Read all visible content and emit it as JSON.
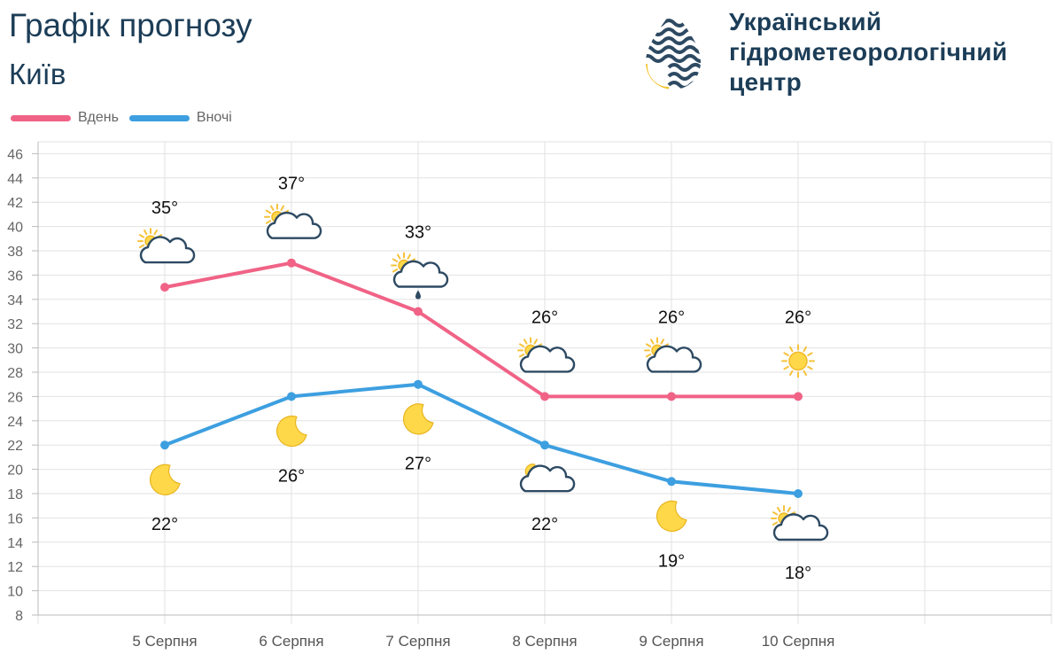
{
  "header": {
    "title": "Графік прогнозу",
    "city": "Київ"
  },
  "logo": {
    "line1": "Український",
    "line2": "гідрометеорологічний",
    "line3": "центр"
  },
  "colors": {
    "day": "#f06386",
    "night": "#3d9fe0",
    "text": "#1c3d57",
    "grid": "#e2e2e2"
  },
  "chart_data": {
    "type": "line",
    "categories": [
      "5 Серпня",
      "6 Серпня",
      "7 Серпня",
      "8 Серпня",
      "9 Серпня",
      "10 Серпня"
    ],
    "series": [
      {
        "name": "Вдень",
        "values": [
          35,
          37,
          33,
          26,
          26,
          26
        ],
        "labels": [
          "35°",
          "37°",
          "33°",
          "26°",
          "26°",
          "26°"
        ],
        "icons": [
          "sun-cloud-icon",
          "sun-cloud-icon",
          "sun-cloud-rain-icon",
          "sun-cloud-icon",
          "sun-cloud-icon",
          "sun-icon"
        ]
      },
      {
        "name": "Вночі",
        "values": [
          22,
          26,
          27,
          22,
          19,
          18
        ],
        "labels": [
          "22°",
          "26°",
          "27°",
          "22°",
          "19°",
          "18°"
        ],
        "icons": [
          "moon-icon",
          "moon-icon",
          "moon-icon",
          "moon-cloud-icon",
          "moon-icon",
          "sun-cloud-icon"
        ]
      }
    ],
    "yticks": [
      "8",
      "10",
      "12",
      "14",
      "16",
      "18",
      "20",
      "22",
      "24",
      "26",
      "28",
      "30",
      "32",
      "34",
      "36",
      "38",
      "40",
      "42",
      "44",
      "46"
    ],
    "ylim": [
      8,
      46
    ],
    "grid": true,
    "legend": "top-left"
  }
}
